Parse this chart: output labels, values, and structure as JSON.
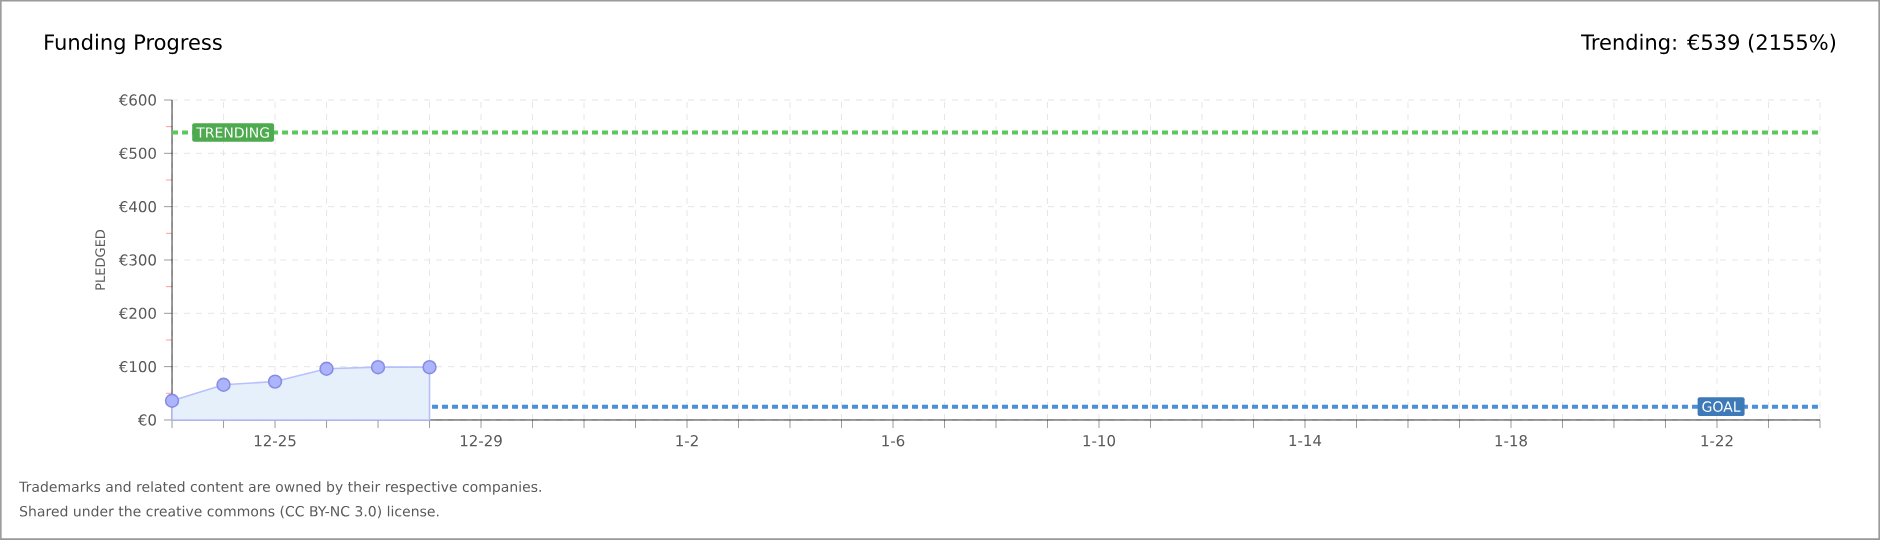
{
  "chart_data": {
    "type": "area",
    "title": "Funding Progress",
    "subtitle": "Trending: €539 (2155%)",
    "ylabel": "PLEDGED",
    "categories": [
      null,
      null,
      "12-25",
      null,
      null,
      null,
      "12-29",
      null,
      null,
      null,
      "1-2",
      null,
      null,
      null,
      "1-6",
      null,
      null,
      null,
      "1-10",
      null,
      null,
      null,
      "1-14",
      null,
      null,
      null,
      "1-18",
      null,
      null,
      null,
      "1-22",
      null,
      null
    ],
    "series": [
      {
        "color": "#e6f0fb",
        "values": [
          36,
          66,
          72,
          96,
          99,
          99,
          null,
          null,
          null,
          null,
          null,
          null,
          null,
          null,
          null,
          null,
          null,
          null,
          null,
          null,
          null,
          null,
          null,
          null,
          null,
          null,
          null,
          null,
          null,
          null,
          null,
          null,
          null
        ]
      }
    ],
    "ylim": [
      0,
      600
    ],
    "yticks": [
      {
        "value": 0,
        "label": "€0"
      },
      {
        "value": 100,
        "label": "€100"
      },
      {
        "value": 200,
        "label": "€200"
      },
      {
        "value": 300,
        "label": "€300"
      },
      {
        "value": 400,
        "label": "€400"
      },
      {
        "value": 500,
        "label": "€500"
      },
      {
        "value": 600,
        "label": "€600"
      }
    ],
    "grid": true,
    "marker": "circle",
    "ref_lines": [
      {
        "axis": "y",
        "value": 539,
        "label": "TRENDING",
        "color": "#5cc85c",
        "line_style": "dotted"
      },
      {
        "axis": "y",
        "value": 25,
        "label": "GOAL",
        "color": "#4a90d9",
        "line_style": "dotted"
      }
    ],
    "annotations": [
      "Trademarks and related content are owned by their respective companies.",
      "Shared under the creative commons (CC BY-NC 3.0) license."
    ]
  }
}
